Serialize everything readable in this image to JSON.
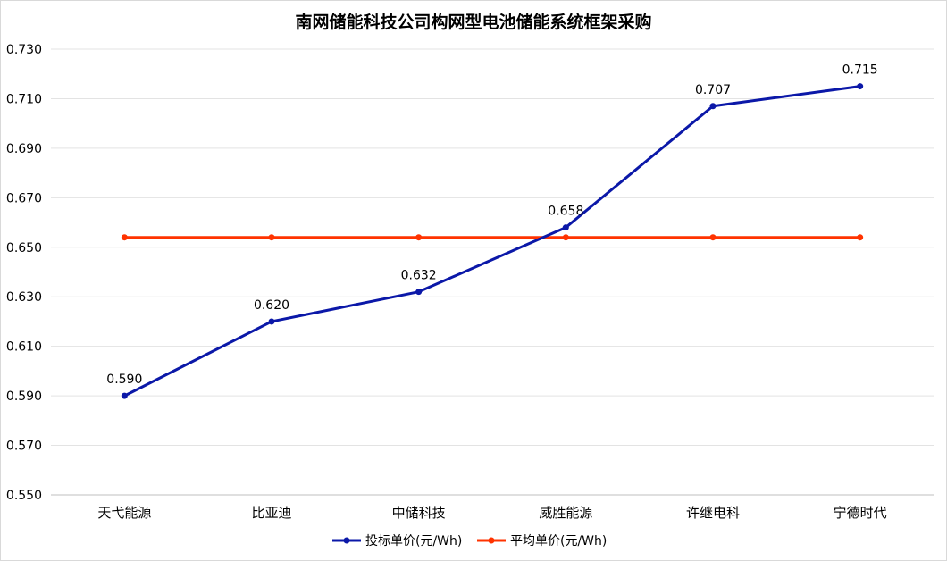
{
  "chart_data": {
    "type": "line",
    "title": "南网储能科技公司构网型电池储能系统框架采购",
    "categories": [
      "天弋能源",
      "比亚迪",
      "中储科技",
      "威胜能源",
      "许继电科",
      "宁德时代"
    ],
    "y_ticks": [
      "0.550",
      "0.570",
      "0.590",
      "0.610",
      "0.630",
      "0.650",
      "0.670",
      "0.690",
      "0.710",
      "0.730"
    ],
    "ylim": [
      0.55,
      0.73
    ],
    "grid": true,
    "legend_position": "bottom",
    "series": [
      {
        "name": "投标单价(元/Wh)",
        "color": "#0b18a8",
        "values": [
          0.59,
          0.62,
          0.632,
          0.658,
          0.707,
          0.715
        ],
        "labels": [
          "0.590",
          "0.620",
          "0.632",
          "0.658",
          "0.707",
          "0.715"
        ],
        "show_labels": true
      },
      {
        "name": "平均单价(元/Wh)",
        "color": "#ff3300",
        "values": [
          0.654,
          0.654,
          0.654,
          0.654,
          0.654,
          0.654
        ],
        "show_labels": false
      }
    ]
  }
}
